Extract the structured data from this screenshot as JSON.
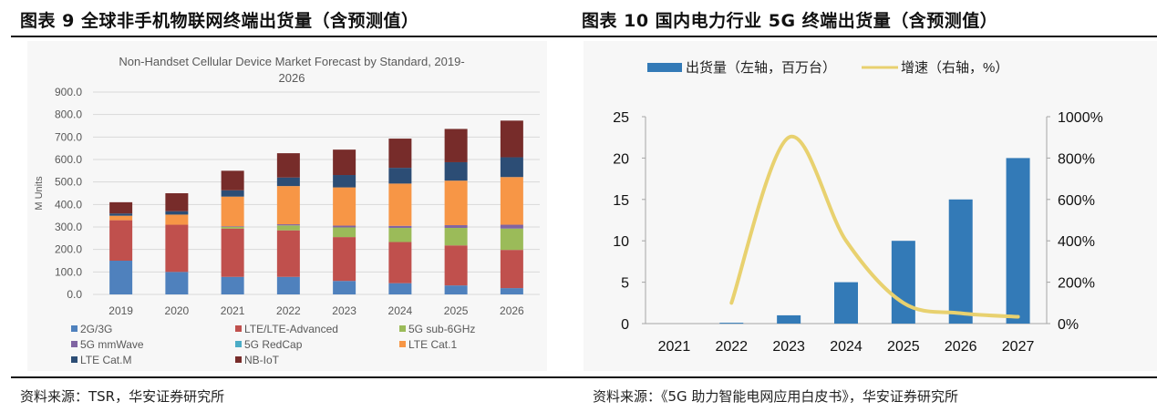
{
  "figures": [
    {
      "title": "图表 9  全球非手机物联网终端出货量（含预测值）",
      "source": "资料来源：TSR，华安证券研究所"
    },
    {
      "title": "图表 10  国内电力行业 5G 终端出货量（含预测值）",
      "source": "资料来源：《5G 助力智能电网应用白皮书》，华安证券研究所"
    }
  ],
  "chart_data": [
    {
      "type": "bar",
      "stacked": true,
      "title": "Non-Handset Cellular Device Market Forecast by Standard, 2019-2026",
      "title_lines": [
        "Non-Handset Cellular Device Market Forecast by Standard, 2019-",
        "2026"
      ],
      "xlabel": "",
      "ylabel": "M Units",
      "ylim": [
        0,
        900
      ],
      "yticks": [
        "0.0",
        "100.0",
        "200.0",
        "300.0",
        "400.0",
        "500.0",
        "600.0",
        "700.0",
        "800.0",
        "900.0"
      ],
      "grid": true,
      "legend_position": "bottom",
      "categories": [
        "2019",
        "2020",
        "2021",
        "2022",
        "2023",
        "2024",
        "2025",
        "2026"
      ],
      "series": [
        {
          "name": "2G/3G",
          "color": "#4f81bd",
          "values": [
            150,
            100,
            78,
            78,
            60,
            50,
            40,
            28
          ]
        },
        {
          "name": "LTE/LTE-Advanced",
          "color": "#c0504d",
          "values": [
            180,
            210,
            215,
            207,
            195,
            183,
            178,
            170
          ]
        },
        {
          "name": "5G sub-6GHz",
          "color": "#9bbb59",
          "values": [
            0,
            0,
            7,
            22,
            43,
            63,
            78,
            95
          ]
        },
        {
          "name": "5G mmWave",
          "color": "#8064a2",
          "values": [
            0,
            0,
            3,
            5,
            8,
            9,
            12,
            17
          ]
        },
        {
          "name": "5G RedCap",
          "color": "#4bacc6",
          "values": [
            0,
            0,
            0,
            0,
            0,
            0,
            0,
            0
          ]
        },
        {
          "name": "LTE Cat.1",
          "color": "#f79646",
          "values": [
            20,
            45,
            132,
            170,
            170,
            188,
            198,
            212
          ]
        },
        {
          "name": "LTE Cat.M",
          "color": "#2c4d75",
          "values": [
            10,
            15,
            28,
            38,
            55,
            70,
            82,
            88
          ]
        },
        {
          "name": "NB-IoT",
          "color": "#772c2a",
          "values": [
            50,
            80,
            87,
            108,
            113,
            130,
            148,
            163
          ]
        }
      ]
    },
    {
      "type": "bar+line",
      "title": "",
      "categories": [
        "2021",
        "2022",
        "2023",
        "2024",
        "2025",
        "2026",
        "2027"
      ],
      "ylim_left": [
        0,
        25
      ],
      "yticks_left": [
        "0",
        "5",
        "10",
        "15",
        "20",
        "25"
      ],
      "ylim_right": [
        0,
        1000
      ],
      "yticks_right": [
        "0%",
        "200%",
        "400%",
        "600%",
        "800%",
        "1000%"
      ],
      "grid": false,
      "legend_position": "top",
      "series": [
        {
          "name": "出货量（左轴，百万台）",
          "type": "bar",
          "axis": "left",
          "color": "#337ab7",
          "values": [
            0,
            0.1,
            1,
            5,
            10,
            15,
            20
          ]
        },
        {
          "name": "增速（右轴，%）",
          "type": "line",
          "axis": "right",
          "color": "#e8d16f",
          "values": [
            null,
            100,
            900,
            400,
            100,
            50,
            33
          ]
        }
      ]
    }
  ]
}
